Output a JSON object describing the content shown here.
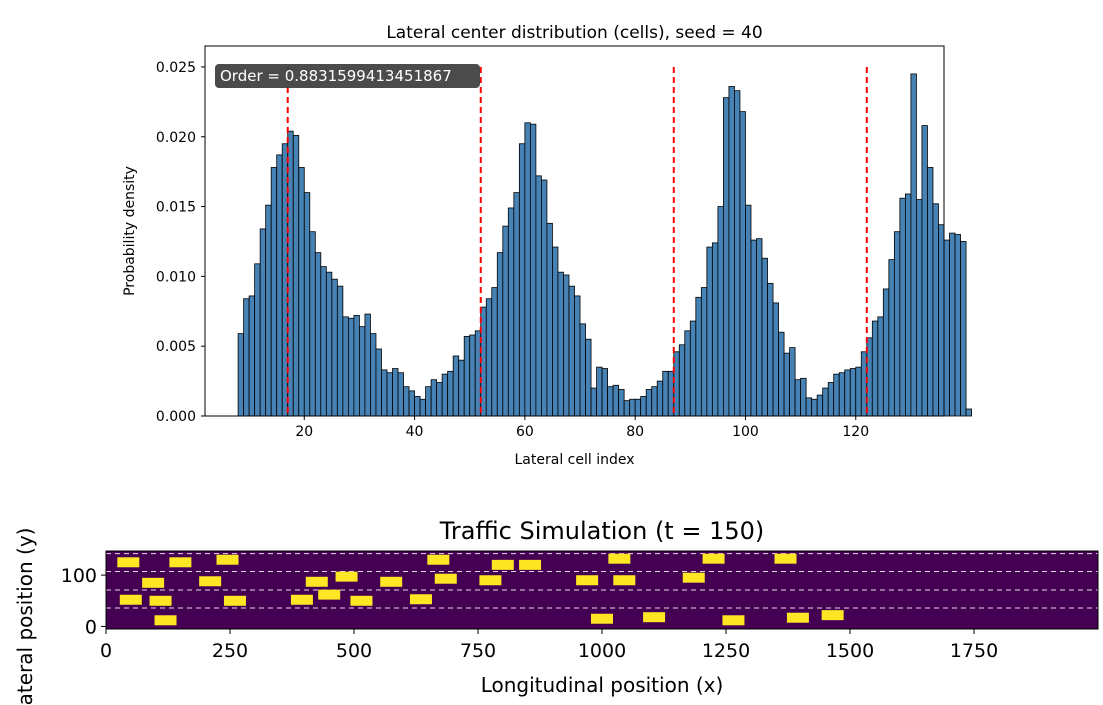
{
  "chart_data": [
    {
      "type": "bar",
      "title": "Lateral center distribution (cells), seed = 40",
      "xlabel": "Lateral cell index",
      "ylabel": "Probability density",
      "xlim": [
        2,
        136
      ],
      "ylim": [
        0,
        0.0265
      ],
      "x_ticks": [
        20,
        40,
        60,
        80,
        100,
        120
      ],
      "y_ticks": [
        0.0,
        0.005,
        0.01,
        0.015,
        0.02,
        0.025
      ],
      "y_tick_labels": [
        "0.000",
        "0.005",
        "0.010",
        "0.015",
        "0.020",
        "0.025"
      ],
      "bar_color": "#4682b4",
      "bar_edge_color": "#000000",
      "x_start": 8,
      "bin_width": 1,
      "values": [
        0.0059,
        0.0084,
        0.0086,
        0.0109,
        0.0134,
        0.0151,
        0.0178,
        0.0187,
        0.0195,
        0.0204,
        0.0201,
        0.0178,
        0.016,
        0.0132,
        0.0117,
        0.0107,
        0.0103,
        0.0098,
        0.0093,
        0.0071,
        0.007,
        0.0072,
        0.0064,
        0.0073,
        0.0059,
        0.0048,
        0.0033,
        0.0031,
        0.0034,
        0.0031,
        0.0021,
        0.0018,
        0.0014,
        0.0012,
        0.0021,
        0.0026,
        0.0024,
        0.003,
        0.0032,
        0.0043,
        0.004,
        0.0057,
        0.0058,
        0.0061,
        0.0078,
        0.0084,
        0.0092,
        0.0117,
        0.0136,
        0.0149,
        0.016,
        0.0195,
        0.021,
        0.0209,
        0.0172,
        0.0169,
        0.0138,
        0.0121,
        0.0103,
        0.0101,
        0.0093,
        0.0086,
        0.0066,
        0.0055,
        0.002,
        0.0035,
        0.0034,
        0.0021,
        0.0022,
        0.0019,
        0.0011,
        0.0012,
        0.0012,
        0.0014,
        0.0019,
        0.0021,
        0.0025,
        0.0032,
        0.0032,
        0.0046,
        0.0051,
        0.0061,
        0.0068,
        0.0085,
        0.0092,
        0.0121,
        0.0124,
        0.015,
        0.0228,
        0.0236,
        0.0233,
        0.0218,
        0.0151,
        0.0126,
        0.0127,
        0.0113,
        0.0095,
        0.0081,
        0.006,
        0.0045,
        0.0049,
        0.0026,
        0.0027,
        0.0013,
        0.0012,
        0.0015,
        0.002,
        0.0024,
        0.003,
        0.0031,
        0.0033,
        0.0034,
        0.0035,
        0.0046,
        0.0056,
        0.0068,
        0.0071,
        0.0091,
        0.0112,
        0.0132,
        0.0156,
        0.0159,
        0.0245,
        0.0155,
        0.0208,
        0.0178,
        0.0152,
        0.0137,
        0.0126,
        0.0131,
        0.013,
        0.0125,
        0.0005
      ],
      "peak_lines": [
        17,
        52,
        87,
        122
      ],
      "peak_line_color": "#ff0000",
      "annotation": "Order = 0.8831599413451867"
    },
    {
      "type": "heatmap",
      "title": "Traffic Simulation (t = 150)",
      "xlabel": "Longitudinal position (x)",
      "ylabel": "Lateral position (y)",
      "xlim": [
        0,
        2000
      ],
      "ylim": [
        -5,
        147
      ],
      "x_ticks": [
        0,
        250,
        500,
        750,
        1000,
        1250,
        1500,
        1750
      ],
      "y_ticks": [
        0,
        100
      ],
      "background_color": "#440154",
      "vehicle_color": "#fde725",
      "lane_lines_y": [
        36,
        71,
        107,
        142
      ],
      "lane_line_color": "#ffffff",
      "vehicles": [
        {
          "x": 45,
          "y": 125
        },
        {
          "x": 150,
          "y": 125
        },
        {
          "x": 245,
          "y": 130
        },
        {
          "x": 670,
          "y": 130
        },
        {
          "x": 800,
          "y": 120
        },
        {
          "x": 855,
          "y": 120
        },
        {
          "x": 1035,
          "y": 132
        },
        {
          "x": 1225,
          "y": 132
        },
        {
          "x": 1370,
          "y": 132
        },
        {
          "x": 95,
          "y": 85
        },
        {
          "x": 210,
          "y": 88
        },
        {
          "x": 425,
          "y": 87
        },
        {
          "x": 485,
          "y": 97
        },
        {
          "x": 575,
          "y": 87
        },
        {
          "x": 685,
          "y": 93
        },
        {
          "x": 775,
          "y": 90
        },
        {
          "x": 970,
          "y": 90
        },
        {
          "x": 1045,
          "y": 90
        },
        {
          "x": 1185,
          "y": 95
        },
        {
          "x": 50,
          "y": 52
        },
        {
          "x": 110,
          "y": 50
        },
        {
          "x": 260,
          "y": 50
        },
        {
          "x": 395,
          "y": 52
        },
        {
          "x": 450,
          "y": 62
        },
        {
          "x": 515,
          "y": 50
        },
        {
          "x": 635,
          "y": 53
        },
        {
          "x": 120,
          "y": 12
        },
        {
          "x": 1000,
          "y": 15
        },
        {
          "x": 1105,
          "y": 18
        },
        {
          "x": 1265,
          "y": 12
        },
        {
          "x": 1395,
          "y": 17
        },
        {
          "x": 1465,
          "y": 22
        }
      ]
    }
  ]
}
